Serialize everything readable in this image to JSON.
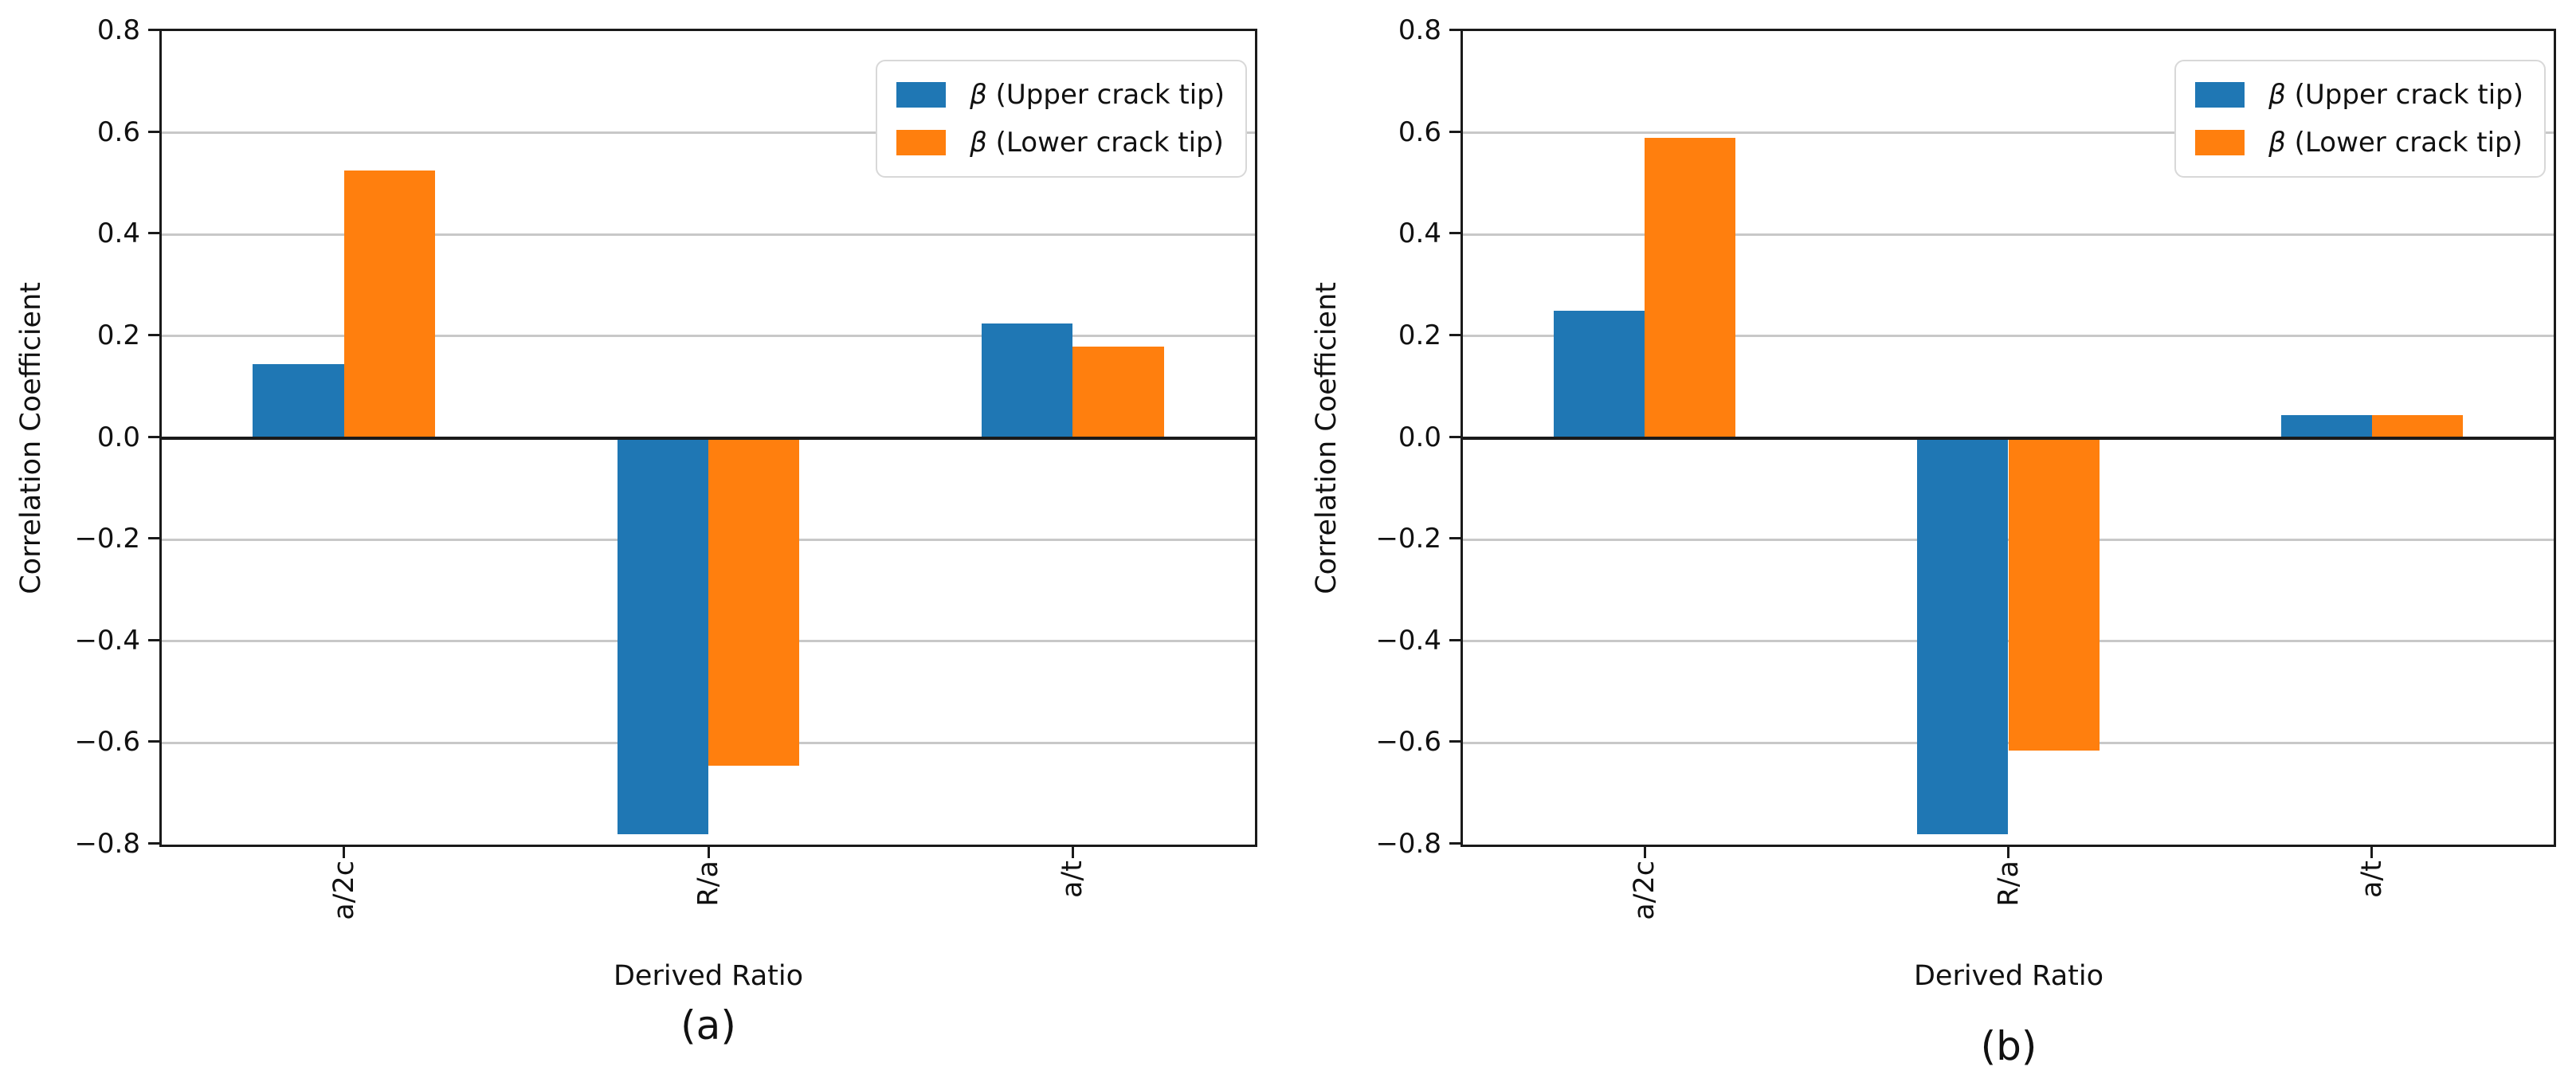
{
  "style": {
    "background": "#ffffff",
    "axis_color": "#1a1a1a",
    "grid_color": "#c8c8c8",
    "upper_color": "#1f77b4",
    "lower_color": "#ff7f0e"
  },
  "chart_data": [
    {
      "type": "bar",
      "panel_label": "(a)",
      "xlabel": "Derived Ratio",
      "ylabel": "Correlation Coefficient",
      "categories": [
        "a/2c",
        "R/a",
        "a/t"
      ],
      "series": [
        {
          "symbol": "β",
          "label_rest": " (Upper crack tip)",
          "color": "#1f77b4",
          "values": [
            0.145,
            -0.78,
            0.225
          ]
        },
        {
          "symbol": "β",
          "label_rest": " (Lower crack tip)",
          "color": "#ff7f0e",
          "values": [
            0.525,
            -0.645,
            0.18
          ]
        }
      ],
      "ylim": [
        -0.8,
        0.8
      ],
      "yticks": [
        0.8,
        0.6,
        0.4,
        0.2,
        0.0,
        -0.2,
        -0.4,
        -0.6,
        -0.8
      ],
      "ytick_labels": [
        "0.8",
        "0.6",
        "0.4",
        "0.2",
        "0.0",
        "−0.2",
        "−0.4",
        "−0.6",
        "−0.8"
      ],
      "grid": true,
      "legend_position": "upper right"
    },
    {
      "type": "bar",
      "panel_label": "(b)",
      "xlabel": "Derived Ratio",
      "ylabel": "Correlation Coefficient",
      "categories": [
        "a/2c",
        "R/a",
        "a/t"
      ],
      "series": [
        {
          "symbol": "β",
          "label_rest": " (Upper crack tip)",
          "color": "#1f77b4",
          "values": [
            0.25,
            -0.78,
            0.045
          ]
        },
        {
          "symbol": "β",
          "label_rest": " (Lower crack tip)",
          "color": "#ff7f0e",
          "values": [
            0.59,
            -0.615,
            0.045
          ]
        }
      ],
      "ylim": [
        -0.8,
        0.8
      ],
      "yticks": [
        0.8,
        0.6,
        0.4,
        0.2,
        0.0,
        -0.2,
        -0.4,
        -0.6,
        -0.8
      ],
      "ytick_labels": [
        "0.8",
        "0.6",
        "0.4",
        "0.2",
        "0.0",
        "−0.2",
        "−0.4",
        "−0.6",
        "−0.8"
      ],
      "grid": true,
      "legend_position": "upper right"
    }
  ]
}
